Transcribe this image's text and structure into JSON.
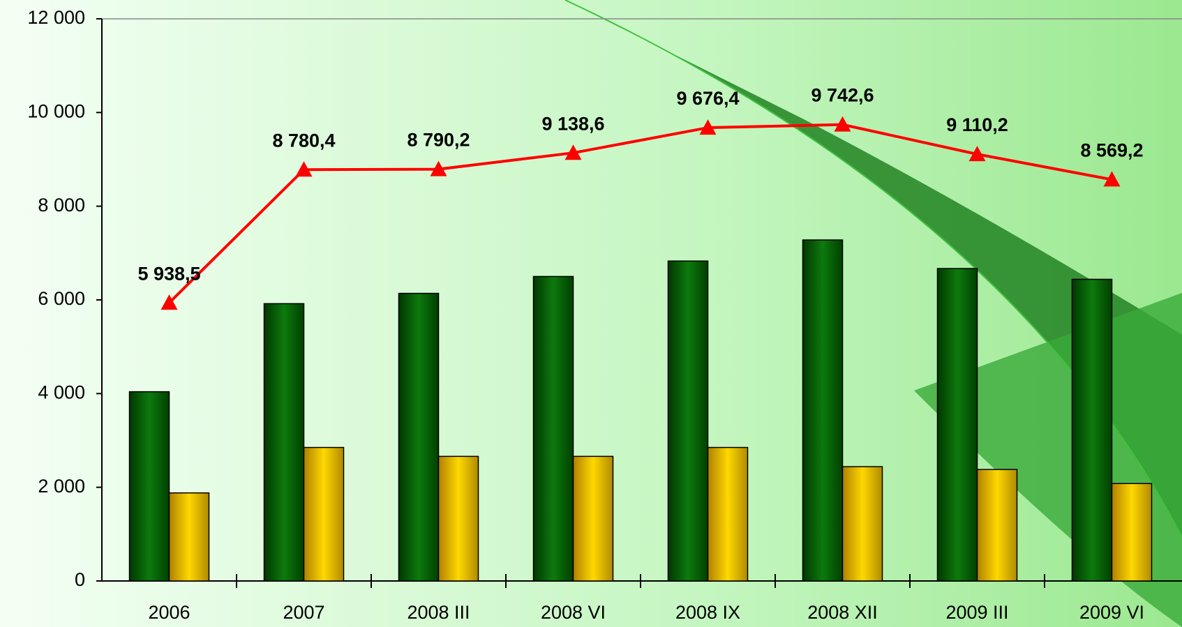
{
  "chart_data": {
    "type": "bar",
    "categories": [
      "2006",
      "2007",
      "2008 III",
      "2008 VI",
      "2008 IX",
      "2008 XII",
      "2009 III",
      "2009 VI"
    ],
    "series": [
      {
        "type": "bar",
        "color": "#0a6a0a",
        "values": [
          4040,
          5920,
          6140,
          6500,
          6830,
          7280,
          6670,
          6440
        ]
      },
      {
        "type": "bar",
        "color": "#f0c000",
        "values": [
          1880,
          2850,
          2660,
          2660,
          2850,
          2440,
          2380,
          2080
        ]
      },
      {
        "type": "line",
        "color": "#ff0000",
        "values": [
          5938.5,
          8780.4,
          8790.2,
          9138.6,
          9676.4,
          9742.6,
          9110.2,
          8569.2
        ],
        "value_labels": [
          "5 938,5",
          "8 780,4",
          "8 790,2",
          "9 138,6",
          "9 676,4",
          "9 742,6",
          "9 110,2",
          "8 569,2"
        ]
      }
    ],
    "ylim": [
      0,
      12000
    ],
    "yticks": [
      0,
      {
        "value": 2000,
        "label": "2 000"
      },
      {
        "value": 4000,
        "label": "4 000"
      },
      {
        "value": 6000,
        "label": "6 000"
      },
      {
        "value": 8000,
        "label": "8 000"
      },
      {
        "value": 10000,
        "label": "10 000"
      },
      {
        "value": 12000,
        "label": "12 000"
      }
    ],
    "grid": false
  }
}
